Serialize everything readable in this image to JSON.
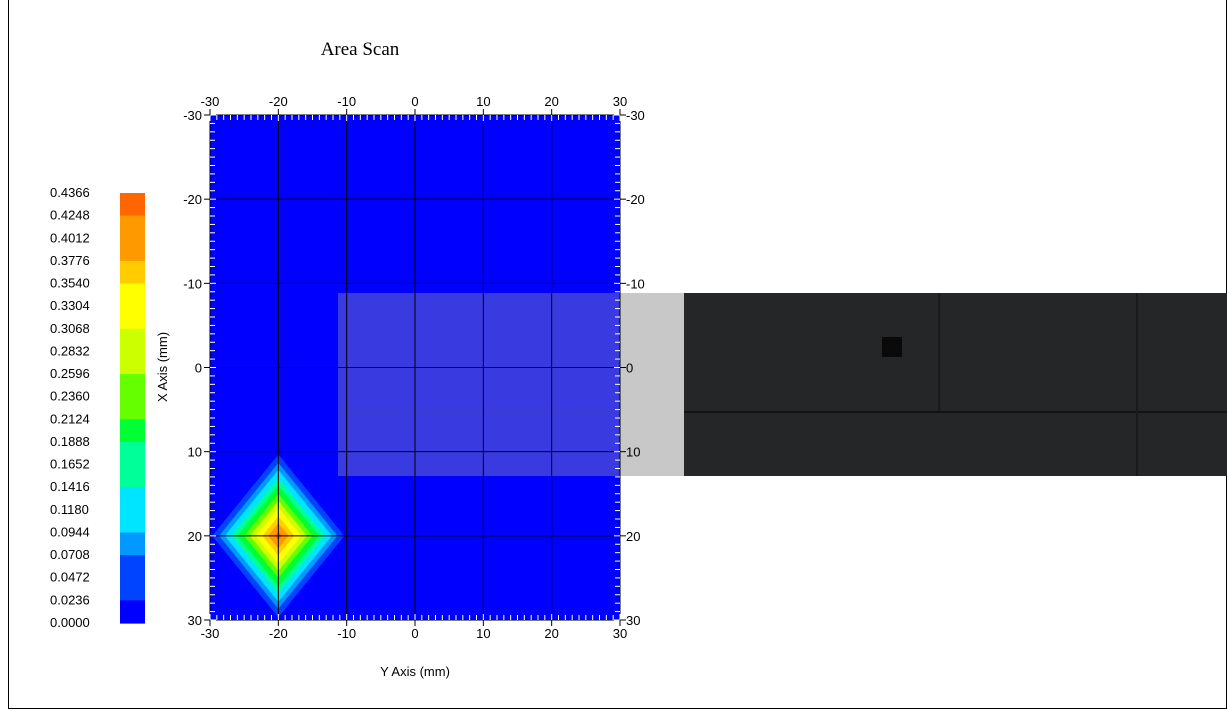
{
  "chart_data": {
    "type": "heatmap",
    "title": "Area Scan",
    "xlabel": "Y Axis (mm)",
    "ylabel": "X Axis (mm)",
    "x_ticks": [
      "-30",
      "-20",
      "-10",
      "0",
      "10",
      "20",
      "30"
    ],
    "y_ticks": [
      "-30",
      "-20",
      "-10",
      "0",
      "10",
      "20",
      "30"
    ],
    "xlim": [
      -30,
      30
    ],
    "ylim": [
      -30,
      30
    ],
    "grid": true,
    "colorbar": {
      "min": 0.0,
      "max": 0.4366,
      "labels": [
        "0.4366",
        "0.4248",
        "0.4012",
        "0.3776",
        "0.3540",
        "0.3304",
        "0.3068",
        "0.2832",
        "0.2596",
        "0.2360",
        "0.2124",
        "0.1888",
        "0.1652",
        "0.1416",
        "0.1180",
        "0.0944",
        "0.0708",
        "0.0472",
        "0.0236",
        "0.0000"
      ]
    },
    "grid_x": [
      -30,
      -20,
      -10,
      0,
      10,
      20,
      30
    ],
    "grid_y": [
      -30,
      -20,
      -10,
      0,
      10,
      20,
      30
    ],
    "values": [
      [
        0,
        0,
        0,
        0,
        0,
        0,
        0
      ],
      [
        0,
        0,
        0,
        0,
        0,
        0,
        0
      ],
      [
        0,
        0,
        0,
        0,
        0,
        0,
        0
      ],
      [
        0,
        0,
        0,
        0,
        0,
        0,
        0
      ],
      [
        0,
        0,
        0,
        0,
        0,
        0,
        0
      ],
      [
        0,
        0.4366,
        0,
        0,
        0,
        0,
        0
      ],
      [
        0,
        0,
        0,
        0,
        0,
        0,
        0
      ]
    ]
  },
  "colors": {
    "background": "#0000ff",
    "colormap": [
      "#0000ff",
      "#0044ff",
      "#0099ff",
      "#00e5ff",
      "#00ff99",
      "#00ff33",
      "#66ff00",
      "#ccff00",
      "#ffff00",
      "#ffcc00",
      "#ff9900",
      "#ff6600"
    ],
    "grid": "#000000",
    "photo_glass": "#c8c8c8",
    "photo_dark": "#252627"
  }
}
